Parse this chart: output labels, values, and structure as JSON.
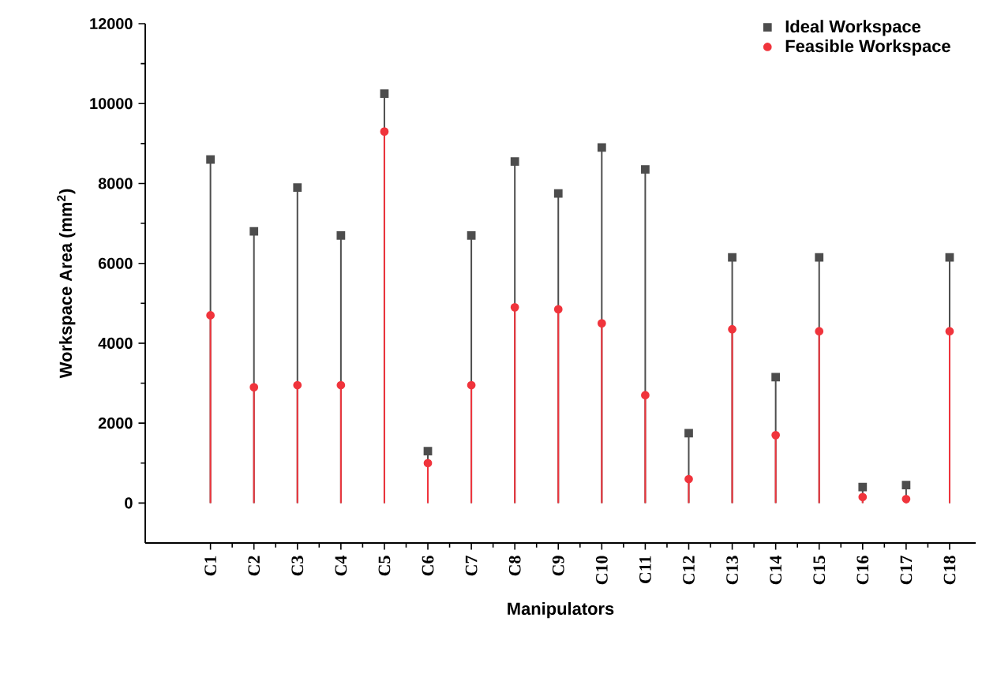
{
  "chart_data": {
    "type": "lollipop",
    "xlabel": "Manipulators",
    "ylabel": "Workspace Area (mm$^{2}$)",
    "categories": [
      "C1",
      "C2",
      "C3",
      "C4",
      "C5",
      "C6",
      "C7",
      "C8",
      "C9",
      "C10",
      "C11",
      "C12",
      "C13",
      "C14",
      "C15",
      "C16",
      "C17",
      "C18"
    ],
    "series": [
      {
        "name": "Ideal Workspace",
        "color": "#4d4d4d",
        "marker": "square",
        "values": [
          8600,
          6800,
          7900,
          6700,
          10250,
          1300,
          6700,
          8550,
          7750,
          8900,
          8350,
          1750,
          6150,
          3150,
          6150,
          400,
          450,
          6150
        ]
      },
      {
        "name": "Feasible Workspace",
        "color": "#f0343c",
        "marker": "circle",
        "values": [
          4700,
          2900,
          2950,
          2950,
          9300,
          1000,
          2950,
          4900,
          4850,
          4500,
          2700,
          600,
          4350,
          1700,
          4300,
          150,
          100,
          4300
        ]
      }
    ],
    "ylim": [
      -1000,
      12000
    ],
    "yticks": [
      0,
      2000,
      4000,
      6000,
      8000,
      10000,
      12000
    ],
    "legend": "top right"
  }
}
